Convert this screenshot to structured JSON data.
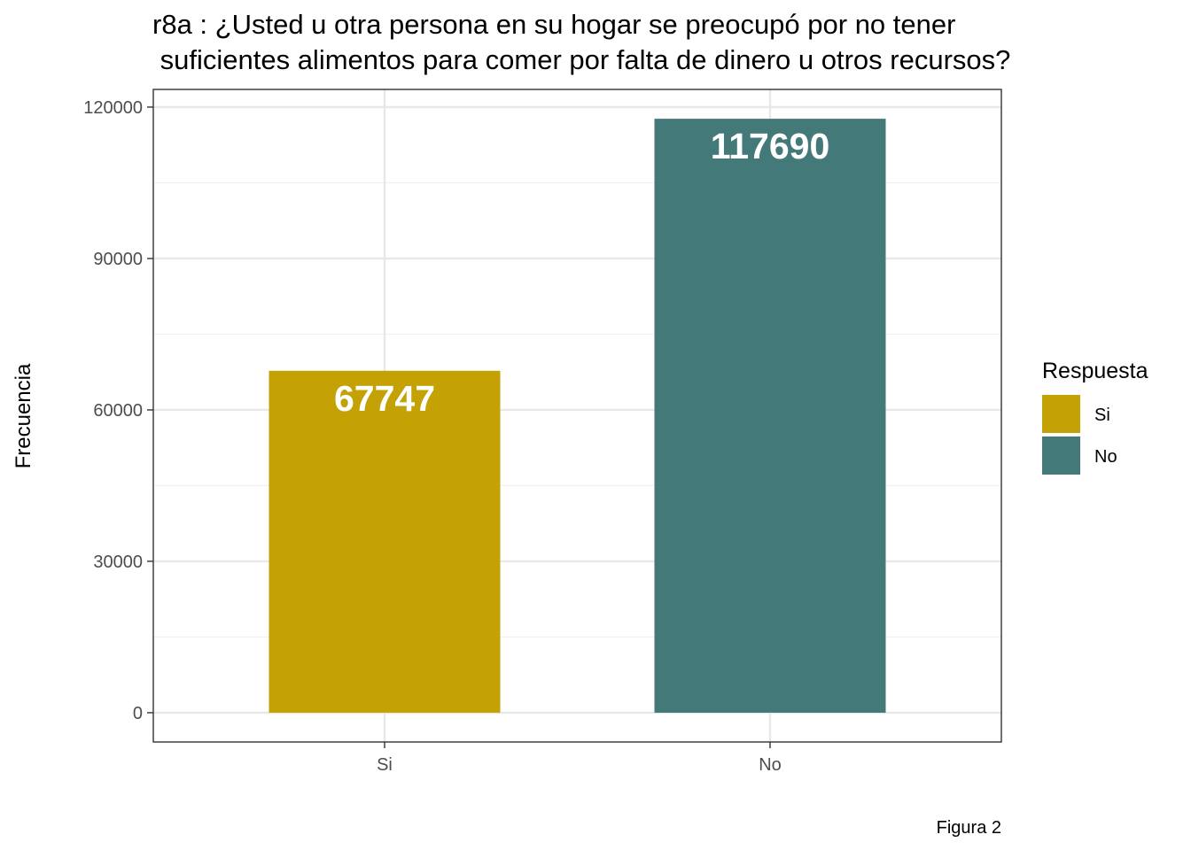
{
  "chart_data": {
    "type": "bar",
    "title_lines": [
      "r8a : ¿Usted u otra persona en su hogar se preocupó por no tener",
      " suficientes alimentos para comer por falta de dinero u otros recursos?"
    ],
    "categories": [
      "Si",
      "No"
    ],
    "values": [
      67747,
      117690
    ],
    "value_labels": [
      "67747",
      "117690"
    ],
    "colors": [
      "#C4A205",
      "#437A79"
    ],
    "xlabel": "",
    "ylabel": "Frecuencia",
    "ylim": [
      -5800,
      123500
    ],
    "yticks": [
      0,
      30000,
      60000,
      90000,
      120000
    ],
    "ytick_labels": [
      "0",
      "30000",
      "60000",
      "90000",
      "120000"
    ],
    "grid": true,
    "legend": {
      "title": "Respuesta",
      "placement": "right",
      "items": [
        {
          "label": "Si",
          "color": "#C4A205"
        },
        {
          "label": "No",
          "color": "#437A79"
        }
      ]
    },
    "caption": "Figura 2"
  }
}
